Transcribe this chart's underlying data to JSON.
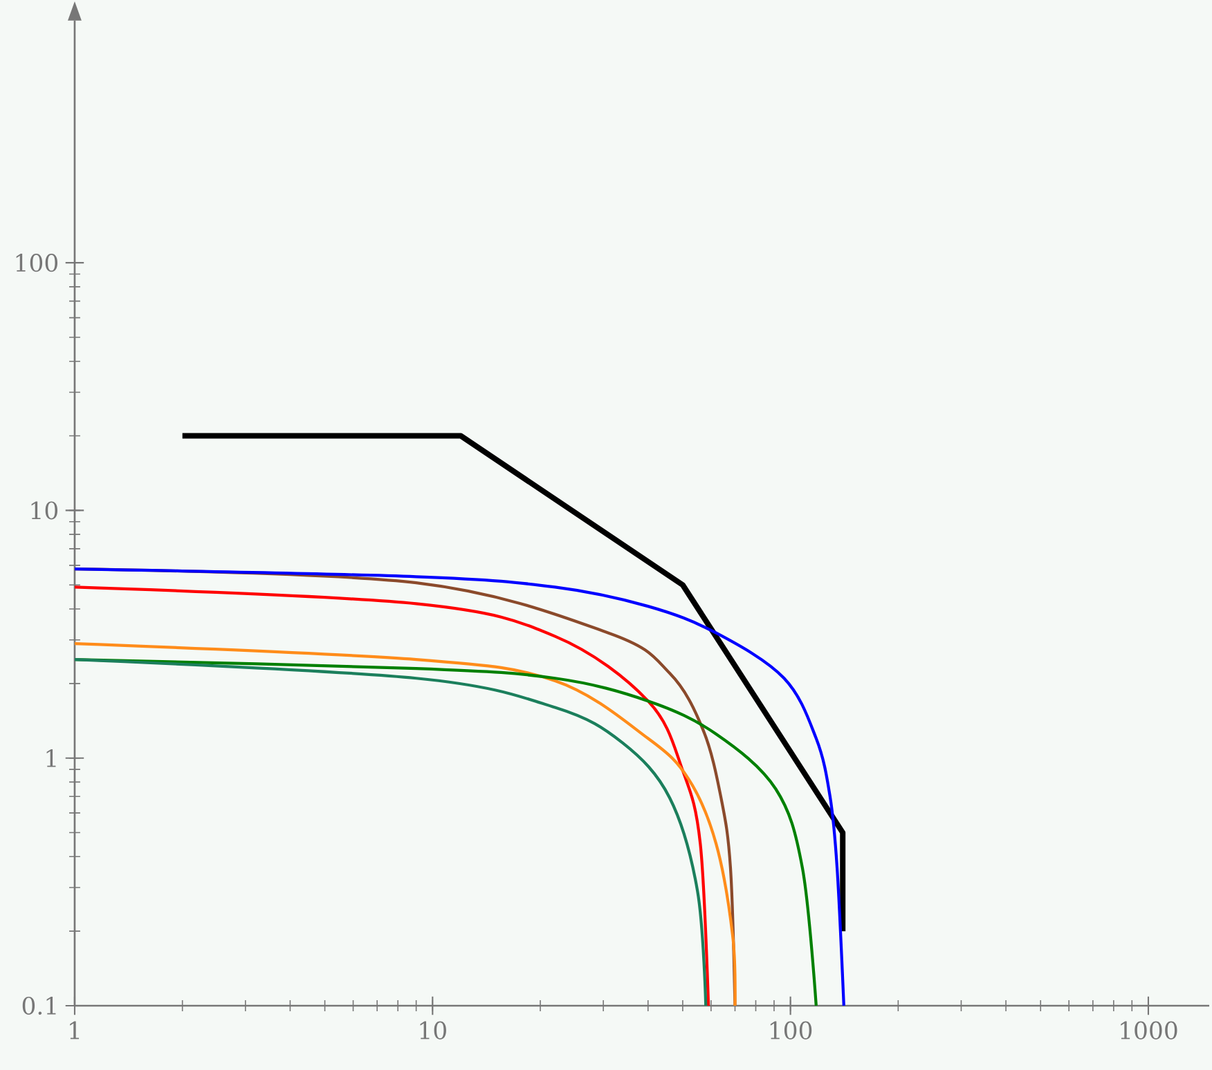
{
  "chart_data": {
    "type": "line",
    "log": "xy",
    "grid": false,
    "marker": "none",
    "line_style": "solid",
    "xlim": [
      1,
      1480
    ],
    "ylim": [
      0.1,
      950
    ],
    "xticks": [
      1,
      10,
      100,
      1000
    ],
    "yticks": [
      0.1,
      1,
      10,
      100
    ],
    "series": [
      {
        "color": "#000000",
        "x": [
          2,
          12,
          50,
          140,
          140
        ],
        "values": [
          20,
          20,
          5,
          0.5,
          0.2
        ]
      },
      {
        "color": "#8b4a2b",
        "x": [
          1,
          9,
          31,
          46,
          57,
          64,
          68,
          70
        ],
        "values": [
          5.8,
          5.1,
          3.2,
          2.2,
          1.3,
          0.69,
          0.36,
          0.1
        ]
      },
      {
        "color": "#0000ff",
        "x": [
          1,
          9,
          22,
          40,
          62,
          96,
          118,
          129,
          135,
          141
        ],
        "values": [
          5.8,
          5.4,
          4.9,
          4.1,
          3.2,
          2.1,
          1.2,
          0.7,
          0.36,
          0.1
        ]
      },
      {
        "color": "#ff0000",
        "x": [
          1,
          9,
          22,
          40,
          50,
          56,
          59
        ],
        "values": [
          4.9,
          4.2,
          3.1,
          1.7,
          0.89,
          0.45,
          0.1
        ]
      },
      {
        "color": "#ff8c1a",
        "x": [
          1,
          9,
          22,
          40,
          52,
          62,
          69,
          70
        ],
        "values": [
          2.9,
          2.5,
          2.05,
          1.2,
          0.82,
          0.45,
          0.19,
          0.1
        ]
      },
      {
        "color": "#008000",
        "x": [
          1,
          9,
          22,
          40,
          62,
          91,
          108,
          118
        ],
        "values": [
          2.5,
          2.3,
          2.1,
          1.7,
          1.25,
          0.75,
          0.36,
          0.1
        ]
      },
      {
        "color": "#1b7f5c",
        "x": [
          1,
          9,
          22,
          34,
          46,
          55,
          58
        ],
        "values": [
          2.5,
          2.1,
          1.6,
          1.15,
          0.69,
          0.29,
          0.1
        ]
      }
    ]
  }
}
